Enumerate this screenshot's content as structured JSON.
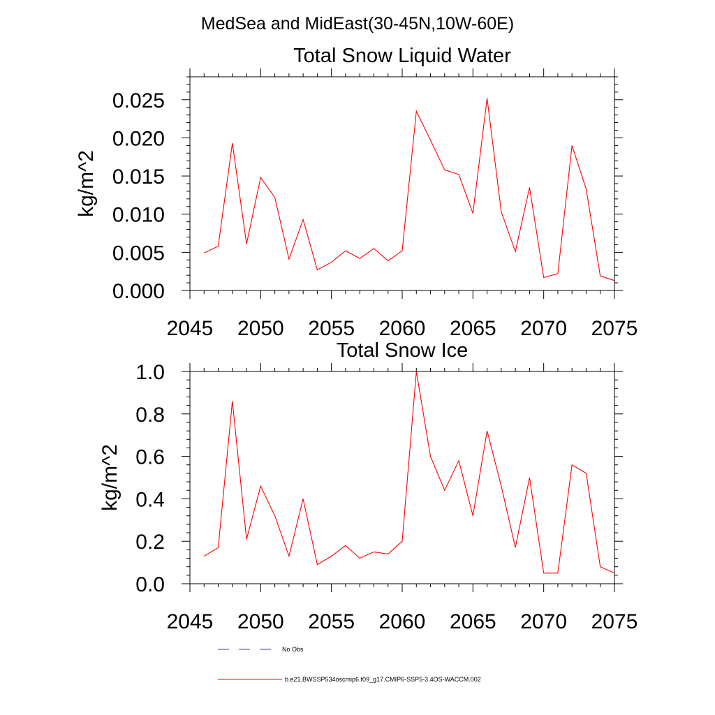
{
  "figure": {
    "suptitle": "MedSea and MidEast(30-45N,10W-60E)"
  },
  "chart_data": [
    {
      "type": "line",
      "title": "Total Snow Liquid Water",
      "xlabel": "",
      "ylabel": "kg/m^2",
      "xlim": [
        2045,
        2075
      ],
      "ylim": [
        0.0,
        0.028
      ],
      "xticks": [
        2045,
        2050,
        2055,
        2060,
        2065,
        2070,
        2075
      ],
      "xtick_labels": [
        "2045",
        "2050",
        "2055",
        "2060",
        "2065",
        "2070",
        "2075"
      ],
      "yticks": [
        0.0,
        0.005,
        0.01,
        0.015,
        0.02,
        0.025
      ],
      "ytick_labels": [
        "0.000",
        "0.005",
        "0.010",
        "0.015",
        "0.020",
        "0.025"
      ],
      "grid": false,
      "series": [
        {
          "name": "b.e21.BWSSP534oscmip6.f09_g17.CMIP6-SSP5-3.4OS-WACCM.002",
          "color": "#ff0000",
          "x": [
            2046,
            2047,
            2048,
            2049,
            2050,
            2051,
            2052,
            2053,
            2054,
            2055,
            2056,
            2057,
            2058,
            2059,
            2060,
            2061,
            2062,
            2063,
            2064,
            2065,
            2066,
            2067,
            2068,
            2069,
            2070,
            2071,
            2072,
            2073,
            2074,
            2075
          ],
          "values": [
            0.0049,
            0.0058,
            0.0193,
            0.0061,
            0.0148,
            0.0122,
            0.0041,
            0.0093,
            0.0027,
            0.0037,
            0.0052,
            0.0042,
            0.0055,
            0.0039,
            0.0052,
            0.0235,
            0.0197,
            0.0158,
            0.0152,
            0.0101,
            0.0252,
            0.0103,
            0.0051,
            0.0135,
            0.0017,
            0.0022,
            0.019,
            0.0133,
            0.0019,
            0.0013
          ]
        }
      ]
    },
    {
      "type": "line",
      "title": "Total Snow Ice",
      "xlabel": "",
      "ylabel": "kg/m^2",
      "xlim": [
        2045,
        2075
      ],
      "ylim": [
        0.0,
        1.0
      ],
      "xticks": [
        2045,
        2050,
        2055,
        2060,
        2065,
        2070,
        2075
      ],
      "xtick_labels": [
        "2045",
        "2050",
        "2055",
        "2060",
        "2065",
        "2070",
        "2075"
      ],
      "yticks": [
        0.0,
        0.2,
        0.4,
        0.6,
        0.8,
        1.0
      ],
      "ytick_labels": [
        "0.0",
        "0.2",
        "0.4",
        "0.6",
        "0.8",
        "1.0"
      ],
      "grid": false,
      "series": [
        {
          "name": "b.e21.BWSSP534oscmip6.f09_g17.CMIP6-SSP5-3.4OS-WACCM.002",
          "color": "#ff0000",
          "x": [
            2046,
            2047,
            2048,
            2049,
            2050,
            2051,
            2052,
            2053,
            2054,
            2055,
            2056,
            2057,
            2058,
            2059,
            2060,
            2061,
            2062,
            2063,
            2064,
            2065,
            2066,
            2067,
            2068,
            2069,
            2070,
            2071,
            2072,
            2073,
            2074,
            2075
          ],
          "values": [
            0.13,
            0.17,
            0.86,
            0.21,
            0.46,
            0.32,
            0.13,
            0.4,
            0.09,
            0.13,
            0.18,
            0.12,
            0.15,
            0.14,
            0.2,
            1.0,
            0.6,
            0.44,
            0.58,
            0.32,
            0.72,
            0.46,
            0.17,
            0.5,
            0.05,
            0.05,
            0.56,
            0.52,
            0.08,
            0.05
          ]
        }
      ]
    }
  ],
  "legend": {
    "items": [
      {
        "label": "No Obs",
        "color": "#3a3acc",
        "style": "dashed"
      },
      {
        "label": "b.e21.BWSSP534oscmip6.f09_g17.CMIP6-SSP5-3.4OS-WACCM.002",
        "color": "#ff0000",
        "style": "solid"
      }
    ]
  }
}
